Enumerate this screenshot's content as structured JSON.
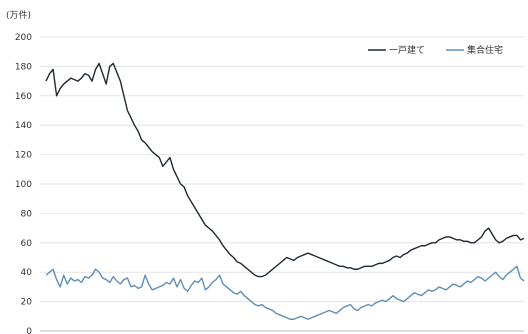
{
  "chart_data": {
    "type": "line",
    "unit_label": "(万件)",
    "ylim": [
      0,
      200
    ],
    "yticks": [
      0,
      20,
      40,
      60,
      80,
      100,
      120,
      140,
      160,
      180,
      200
    ],
    "grid": true,
    "legend_position": "top-right",
    "series": [
      {
        "name": "一戸建て",
        "color": "#1f2a36",
        "values": [
          170,
          175,
          178,
          160,
          165,
          168,
          170,
          172,
          171,
          170,
          172,
          175,
          174,
          170,
          178,
          182,
          175,
          168,
          180,
          182,
          176,
          170,
          160,
          150,
          145,
          140,
          136,
          130,
          128,
          125,
          122,
          120,
          118,
          112,
          115,
          118,
          110,
          105,
          100,
          98,
          92,
          88,
          84,
          80,
          76,
          72,
          70,
          68,
          65,
          62,
          58,
          55,
          52,
          50,
          47,
          46,
          44,
          42,
          40,
          38,
          37,
          37,
          38,
          40,
          42,
          44,
          46,
          48,
          50,
          49,
          48,
          50,
          51,
          52,
          53,
          52,
          51,
          50,
          49,
          48,
          47,
          46,
          45,
          44,
          44,
          43,
          43,
          42,
          42,
          43,
          44,
          44,
          44,
          45,
          46,
          46,
          47,
          48,
          50,
          51,
          50,
          52,
          53,
          55,
          56,
          57,
          58,
          58,
          59,
          60,
          60,
          62,
          63,
          64,
          64,
          63,
          62,
          62,
          61,
          61,
          60,
          60,
          62,
          64,
          68,
          70,
          66,
          62,
          60,
          61,
          63,
          64,
          65,
          65,
          62,
          63
        ]
      },
      {
        "name": "集合住宅",
        "color": "#5f8fb7",
        "values": [
          38,
          40,
          42,
          35,
          30,
          38,
          32,
          36,
          34,
          35,
          33,
          37,
          36,
          38,
          42,
          40,
          36,
          35,
          33,
          37,
          34,
          32,
          35,
          36,
          30,
          31,
          29,
          30,
          38,
          32,
          28,
          29,
          30,
          31,
          33,
          32,
          36,
          30,
          35,
          29,
          27,
          31,
          34,
          33,
          36,
          28,
          30,
          33,
          35,
          38,
          32,
          30,
          28,
          26,
          25,
          27,
          24,
          22,
          20,
          18,
          17,
          18,
          16,
          15,
          14,
          12,
          11,
          10,
          9,
          8,
          8,
          9,
          10,
          9,
          8,
          9,
          10,
          11,
          12,
          13,
          14,
          13,
          12,
          14,
          16,
          17,
          18,
          15,
          14,
          16,
          17,
          18,
          17,
          19,
          20,
          21,
          20,
          22,
          24,
          22,
          21,
          20,
          22,
          24,
          26,
          25,
          24,
          26,
          28,
          27,
          28,
          30,
          29,
          28,
          30,
          32,
          31,
          30,
          32,
          34,
          33,
          35,
          37,
          36,
          34,
          36,
          38,
          40,
          37,
          35,
          38,
          40,
          42,
          44,
          36,
          34
        ]
      }
    ]
  }
}
